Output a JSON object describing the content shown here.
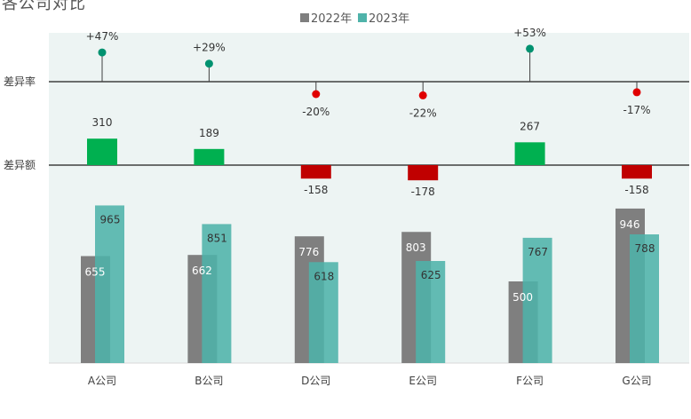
{
  "chart_data": {
    "type": "bar",
    "title": "各公司对比",
    "categories": [
      "A公司",
      "B公司",
      "D公司",
      "E公司",
      "F公司",
      "G公司"
    ],
    "series": [
      {
        "name": "2022年",
        "values": [
          655,
          662,
          776,
          803,
          500,
          946
        ],
        "color": "#7f7f7f"
      },
      {
        "name": "2023年",
        "values": [
          965,
          851,
          618,
          625,
          767,
          788
        ],
        "color": "#4fb3aa"
      }
    ],
    "difference": {
      "label": "差异额",
      "values": [
        310,
        189,
        -158,
        -178,
        267,
        -158
      ]
    },
    "rate": {
      "label": "差异率",
      "values": [
        "+47%",
        "+29%",
        "-20%",
        "-22%",
        "+53%",
        "-17%"
      ],
      "numeric": [
        47,
        29,
        -20,
        -22,
        53,
        -17
      ]
    },
    "ylim": [
      0,
      1200
    ],
    "legend_position": "top-center",
    "colors": {
      "positive": "#00b050",
      "negative": "#c00000",
      "rate_positive": "#009270",
      "rate_negative": "#e00000",
      "background": "#edf4f3",
      "axis": "#404040"
    }
  }
}
